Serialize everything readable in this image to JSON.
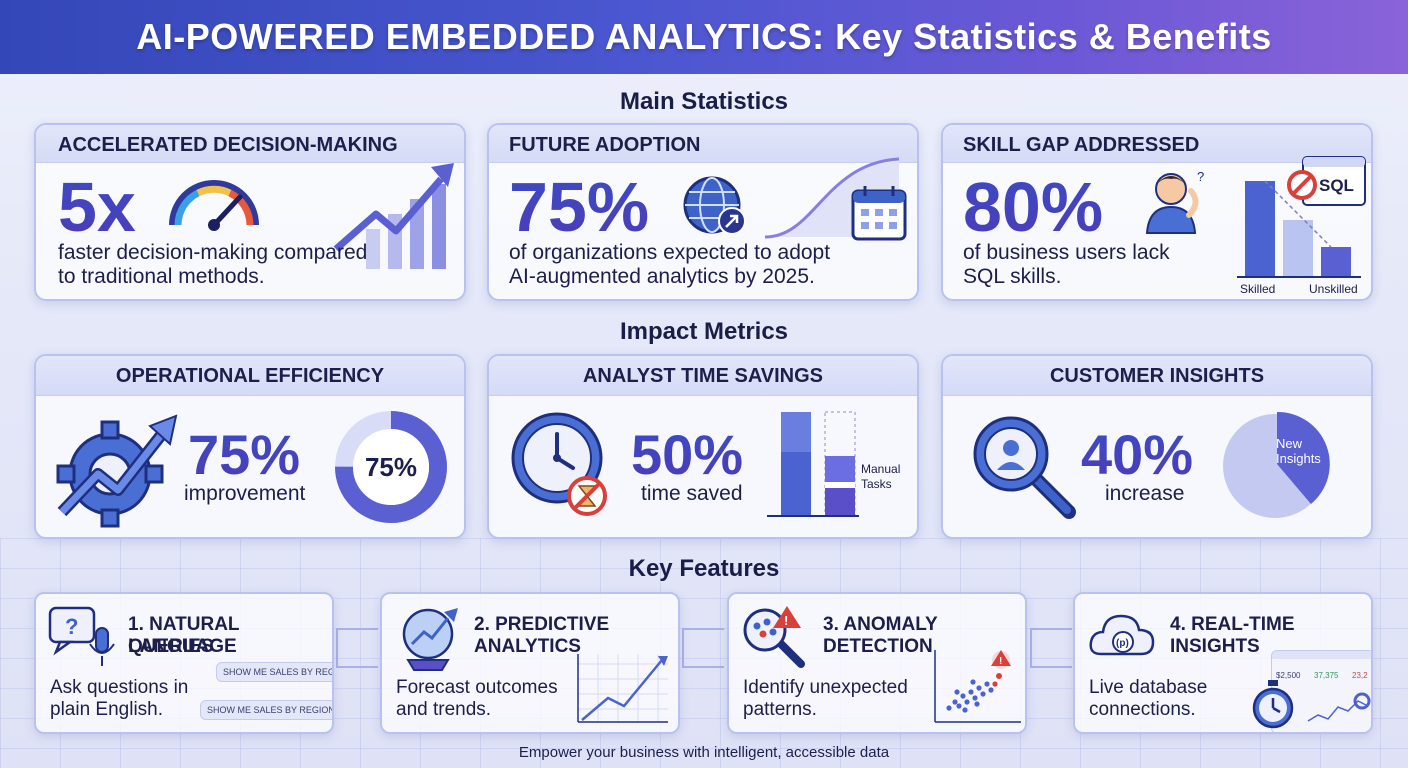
{
  "title": "AI-POWERED EMBEDDED ANALYTICS: Key Statistics & Benefits",
  "sections": {
    "main": "Main Statistics",
    "impact": "Impact Metrics",
    "features": "Key Features"
  },
  "main_stats": [
    {
      "heading": "ACCELERATED DECISION-MAKING",
      "value": "5x",
      "desc_line1": "faster decision-making compared",
      "desc_line2": "to traditional methods."
    },
    {
      "heading": "FUTURE ADOPTION",
      "value": "75%",
      "desc_line1": "of organizations expected to adopt",
      "desc_line2": "AI-augmented analytics by 2025."
    },
    {
      "heading": "SKILL GAP ADDRESSED",
      "value": "80%",
      "desc_line1": "of business users lack",
      "desc_line2": "SQL skills.",
      "sql_label": "SQL",
      "bar_labels": [
        "Skilled",
        "Unskilled"
      ]
    }
  ],
  "impact_metrics": [
    {
      "heading": "OPERATIONAL EFFICIENCY",
      "value": "75%",
      "desc": "improvement",
      "ring_label": "75%",
      "ring_fraction": 0.75
    },
    {
      "heading": "ANALYST TIME SAVINGS",
      "value": "50%",
      "desc": "time saved",
      "bar_label_line1": "Manual",
      "bar_label_line2": "Tasks"
    },
    {
      "heading": "CUSTOMER INSIGHTS",
      "value": "40%",
      "desc": "increase",
      "pie_label_line1": "New",
      "pie_label_line2": "Insights"
    }
  ],
  "features": [
    {
      "title_line1": "1. NATURAL LANGUAGE",
      "title_line2": "QUERIES",
      "desc_line1": "Ask questions in",
      "desc_line2": "plain English.",
      "chip1": "SHOW ME SALES BY REGION",
      "chip2": "SHOW ME SALES BY REGION"
    },
    {
      "title_line1": "2. PREDICTIVE",
      "title_line2": "ANALYTICS",
      "desc_line1": "Forecast outcomes",
      "desc_line2": "and trends."
    },
    {
      "title_line1": "3. ANOMALY",
      "title_line2": "DETECTION",
      "desc_line1": "Identify unexpected",
      "desc_line2": "patterns."
    },
    {
      "title_line1": "4. REAL-TIME",
      "title_line2": "INSIGHTS",
      "desc_line1": "Live database",
      "desc_line2": "connections.",
      "dash_values": [
        "$2,500",
        "37,375",
        "23,2"
      ]
    }
  ],
  "footer": "Empower your business with intelligent, accessible data",
  "colors": {
    "accent": "#3c4cc4",
    "header_start": "#3447b8",
    "header_end": "#8a63d8"
  }
}
